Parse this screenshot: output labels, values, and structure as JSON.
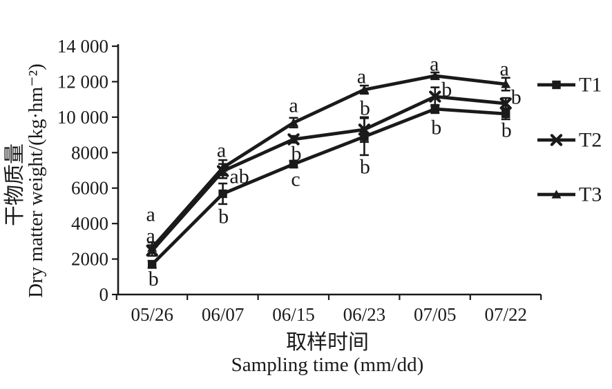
{
  "figure": {
    "background": "#ffffff",
    "ink_color": "#1a1a1a"
  },
  "chart_data": {
    "type": "line",
    "title": "",
    "categories": [
      "05/26",
      "06/07",
      "06/15",
      "06/23",
      "07/05",
      "07/22"
    ],
    "y_tick_labels": [
      "0",
      "2000",
      "4000",
      "6000",
      "8000",
      "10 000",
      "12 000",
      "14 000"
    ],
    "ylim": [
      0,
      14000
    ],
    "y_tick_step": 2000,
    "grid": false,
    "legend_position": "right-outside",
    "xlabel_zh": "取样时间",
    "xlabel_en": "Sampling time (mm/dd)",
    "ylabel_zh": "干物质量",
    "ylabel_en": "Dry matter weight/(kg·hm⁻²)",
    "series": [
      {
        "name": "T1",
        "marker": "square",
        "color": "#1a1a1a",
        "values": [
          1700,
          5680,
          7350,
          8900,
          10460,
          10190
        ],
        "errors": [
          200,
          580,
          190,
          1040,
          230,
          310
        ],
        "sig_letters": [
          {
            "t": "b",
            "dx": 2,
            "dy": 21
          },
          {
            "t": "b",
            "dx": 1,
            "dy": 33
          },
          {
            "t": "c",
            "dx": 3,
            "dy": 22
          },
          {
            "t": "b",
            "dx": 1,
            "dy": 44
          },
          {
            "t": "b",
            "dx": 2,
            "dy": 27
          },
          {
            "t": "b",
            "dx": 1,
            "dy": 24
          }
        ]
      },
      {
        "name": "T2",
        "marker": "x",
        "color": "#1a1a1a",
        "values": [
          2480,
          6960,
          8750,
          9300,
          11160,
          10770
        ],
        "errors": [
          300,
          400,
          190,
          700,
          520,
          310
        ],
        "sig_letters": [
          {
            "t": "a",
            "dx": -2,
            "dy": -21
          },
          {
            "t": "ab",
            "dx": 24,
            "dy": 8
          },
          {
            "t": "b",
            "dx": 4,
            "dy": 21
          },
          {
            "t": "b",
            "dx": 1,
            "dy": -31
          },
          {
            "t": "b",
            "dx": 17,
            "dy": -10
          },
          {
            "t": "b",
            "dx": 15,
            "dy": -9
          }
        ]
      },
      {
        "name": "T3",
        "marker": "triangle",
        "color": "#1a1a1a",
        "values": [
          2640,
          7150,
          9690,
          11550,
          12330,
          11860
        ],
        "errors": [
          300,
          430,
          270,
          230,
          190,
          360
        ],
        "sig_letters": [
          {
            "t": "a",
            "dx": -2,
            "dy": -48
          },
          {
            "t": "a",
            "dx": -2,
            "dy": -25
          },
          {
            "t": "a",
            "dx": 0,
            "dy": -25
          },
          {
            "t": "a",
            "dx": -4,
            "dy": -19
          },
          {
            "t": "a",
            "dx": -1,
            "dy": -17
          },
          {
            "t": "a",
            "dx": -2,
            "dy": -22
          }
        ]
      }
    ]
  }
}
